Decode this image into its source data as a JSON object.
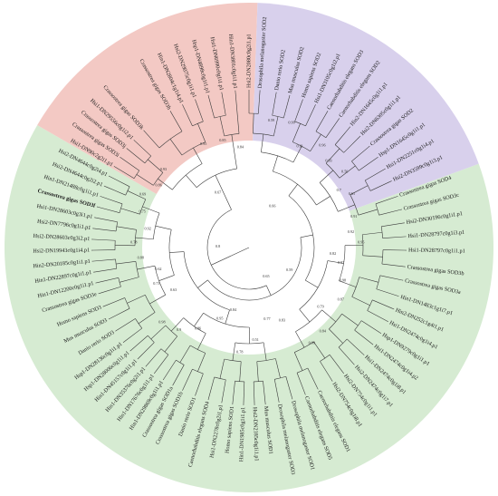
{
  "colors": {
    "green": "#d6ebd2",
    "red": "#f3c9c4",
    "purple": "#d8d0ec",
    "branch": "#3a3a3a"
  },
  "groups": [
    {
      "name": "",
      "color": "#d6ebd2",
      "start_deg": -20,
      "end_deg": 210
    },
    {
      "name": "",
      "color": "#f3c9c4",
      "start_deg": 210,
      "end_deg": 272
    },
    {
      "name": "",
      "color": "#d8d0ec",
      "start_deg": 272,
      "end_deg": 340
    }
  ],
  "leaves": [
    {
      "label": "Drosophila melanogaster SOD2",
      "deg": 274
    },
    {
      "label": "Danio rerio SOD2",
      "deg": 280
    },
    {
      "label": "Mus musculus SOD2",
      "deg": 285
    },
    {
      "label": "Homo sapiens SOD2",
      "deg": 290
    },
    {
      "label": "Hsi1-DN3105c0g1i2.p1",
      "deg": 295
    },
    {
      "label": "Caenorhabditis elegans SOD3",
      "deg": 300
    },
    {
      "label": "Caenorhabditis elegans SOD2",
      "deg": 305
    },
    {
      "label": "Hin2-DN1645c0g1i1.p1",
      "deg": 310
    },
    {
      "label": "Hsi2-DN6305c0g1i1.p1",
      "deg": 315
    },
    {
      "label": "Crassostrea gigas SOD2",
      "deg": 320
    },
    {
      "label": "Hsp1-DN1645c0g1i1.p1",
      "deg": 325
    },
    {
      "label": "Hsi1-DN2251c0g1i4.p1",
      "deg": 330
    },
    {
      "label": "Hsi2-DN3599c0g1i3.p1",
      "deg": 335
    },
    {
      "label": "Crassostrea gigas SOD4",
      "deg": 341
    },
    {
      "label": "Crassostrea gigas SOD3c",
      "deg": 346
    },
    {
      "label": "Hsi2-DN30196c0g1i1.p1",
      "deg": 351
    },
    {
      "label": "Hsi1-DN28797c0g1i3.p1",
      "deg": 356
    },
    {
      "label": "Hsi1-DN28797c0g1i1.p1",
      "deg": 1
    },
    {
      "label": "Crassostrea gigas SOD3b",
      "deg": 7
    },
    {
      "label": "Crassostrea gigas SOD3a",
      "deg": 12
    },
    {
      "label": "Hin1-DN1483c1g1i7.p1",
      "deg": 18
    },
    {
      "label": "Hin2-DN252c1g4i1.p1",
      "deg": 23
    },
    {
      "label": "Hsi1-DN2474c0g1i4.p1",
      "deg": 28
    },
    {
      "label": "Hsp1-DN9279c0g1i1.p1",
      "deg": 33
    },
    {
      "label": "Hsi1-DN2474c0g1i4.p2",
      "deg": 38
    },
    {
      "label": "Hsi1-DN2474c0g1i8.p1",
      "deg": 43
    },
    {
      "label": "Hsi2-DN2474c0g1i7.p1",
      "deg": 48
    },
    {
      "label": "Hsi2-DN754c0g1i1.p1",
      "deg": 53
    },
    {
      "label": "Hsi2-DN754c0g1i8.p1",
      "deg": 58
    },
    {
      "label": "Caenorhabditis elegans SOD1",
      "deg": 64
    },
    {
      "label": "Caenorhabditis elegans SOD5",
      "deg": 69
    },
    {
      "label": "Drosophila melanogaster SOD1",
      "deg": 74
    },
    {
      "label": "Drosophila melanogaster SOD3",
      "deg": 79
    },
    {
      "label": "Mus musculus SOD1",
      "deg": 84
    },
    {
      "label": "Hsi2-DN2185c0g1i1.p1",
      "deg": 88
    },
    {
      "label": "Hin1-DN1985c0g1i1.p1",
      "deg": 92
    },
    {
      "label": "Homo sapiens SOD1",
      "deg": 96
    },
    {
      "label": "Hsi1-DN2278c0g2i1.p1",
      "deg": 100
    },
    {
      "label": "Caenorhabditis elegans SOD4",
      "deg": 105
    },
    {
      "label": "Danio rerio SOD1",
      "deg": 110
    },
    {
      "label": "Crassostrea gigas SOD1b",
      "deg": 115
    },
    {
      "label": "Crassostrea gigas SOD1a",
      "deg": 119
    },
    {
      "label": "Hin1-DN29869c0g1i1.p1",
      "deg": 123
    },
    {
      "label": "Hin1-DN17676c0g1i1.p1",
      "deg": 127
    },
    {
      "label": "Hin1-DN35376c0g2i1.p1",
      "deg": 131
    },
    {
      "label": "Hin1-DN45157c0g1i1.p1",
      "deg": 135
    },
    {
      "label": "Hsp1-DN28006c0g1i1.p1",
      "deg": 139
    },
    {
      "label": "Hsp1-DN28136c0g1i1.p1",
      "deg": 143
    },
    {
      "label": "Danio rerio SOD3",
      "deg": 148
    },
    {
      "label": "Mus musculus SOD3",
      "deg": 153
    },
    {
      "label": "Homo sapiens SOD3",
      "deg": 158
    },
    {
      "label": "Crassostrea gigas SOD3e",
      "deg": 163
    },
    {
      "label": "Hin1-DN12200c0g1i1.p1",
      "deg": 167
    },
    {
      "label": "Hin1-DN22897c0g1i1.p1",
      "deg": 171
    },
    {
      "label": "Hin2-DN20185c0g1i1.p1",
      "deg": 175
    },
    {
      "label": "Hsi2-DN19943c0g1i4.p1",
      "deg": 179
    },
    {
      "label": "Hsi2-DN28603c0g3i2.p1",
      "deg": 183
    },
    {
      "label": "Hsi2-DN7796c0g1i1.p1",
      "deg": 187
    },
    {
      "label": "Hsi1-DN28603c0g3i1.p1",
      "deg": 191
    },
    {
      "label": "Crassostrea gigas SOD3f",
      "deg": 195,
      "bold": true
    },
    {
      "label": "Hin1-DN21488c0g1i1.p1",
      "deg": 199
    },
    {
      "label": "Hsi2-DN4644c0g2i2.p1",
      "deg": 203
    },
    {
      "label": "Hsi2-DN4644c0g2i4.p1",
      "deg": 207
    },
    {
      "label": "Hsi1-DN90c2g2i1.p1",
      "deg": 211
    },
    {
      "label": "Crassostrea gigas SOD3i",
      "deg": 215
    },
    {
      "label": "Crassostrea gigas SOD3j",
      "deg": 219
    },
    {
      "label": "Hsi1-DN29556c0g1i2.p1",
      "deg": 223
    },
    {
      "label": "Crassostrea gigas SOD3k",
      "deg": 228
    },
    {
      "label": "Crassostrea gigas SOD3h",
      "deg": 240
    },
    {
      "label": "Hin1-DN2804c1g1i4.p1",
      "deg": 245
    },
    {
      "label": "Hsi2-DN29075c0g1i1.p1",
      "deg": 250
    },
    {
      "label": "Hsp1-DN4898c0g1i1.p1",
      "deg": 255
    },
    {
      "label": "Hsi1-DN6990c0g1i1.p1",
      "deg": 260
    },
    {
      "label": "Hin1-DN3801c0g1i1.p1",
      "deg": 265
    },
    {
      "label": "Hsi2-DN2080c0g2i1.p1",
      "deg": 270
    }
  ],
  "supports": [
    {
      "text": "0.59",
      "deg": 280,
      "r": 0.82
    },
    {
      "text": "0.99",
      "deg": 289,
      "r": 0.84
    },
    {
      "text": "0.81",
      "deg": 297,
      "r": 0.72
    },
    {
      "text": "0.96",
      "deg": 306,
      "r": 0.8
    },
    {
      "text": "0.93",
      "deg": 313,
      "r": 0.75
    },
    {
      "text": "0.56",
      "deg": 322,
      "r": 0.78
    },
    {
      "text": "0.7",
      "deg": 328,
      "r": 0.68
    },
    {
      "text": "0.61",
      "deg": 333,
      "r": 0.74
    },
    {
      "text": "0.91",
      "deg": 344,
      "r": 0.7
    },
    {
      "text": "0.92",
      "deg": 352,
      "r": 0.66
    },
    {
      "text": "0.95",
      "deg": 358,
      "r": 0.72
    },
    {
      "text": "0.82",
      "deg": 5,
      "r": 0.54
    },
    {
      "text": "0.97",
      "deg": 10,
      "r": 0.6
    },
    {
      "text": "0.98",
      "deg": 20,
      "r": 0.64
    },
    {
      "text": "0.87",
      "deg": 30,
      "r": 0.68
    },
    {
      "text": "0.79",
      "deg": 40,
      "r": 0.6
    },
    {
      "text": "0.84",
      "deg": 49,
      "r": 0.72
    },
    {
      "text": "0.99",
      "deg": 57,
      "r": 0.74
    },
    {
      "text": "0.83",
      "deg": 66,
      "r": 0.52
    },
    {
      "text": "0.77",
      "deg": 76,
      "r": 0.48
    },
    {
      "text": "0.51",
      "deg": 86,
      "r": 0.6
    },
    {
      "text": "0.78",
      "deg": 95,
      "r": 0.68
    },
    {
      "text": "0.84",
      "deg": 104,
      "r": 0.42
    },
    {
      "text": "0.95",
      "deg": 112,
      "r": 0.5
    },
    {
      "text": "0.86",
      "deg": 122,
      "r": 0.62
    },
    {
      "text": "0.9",
      "deg": 130,
      "r": 0.7
    },
    {
      "text": "0.98",
      "deg": 139,
      "r": 0.74
    },
    {
      "text": "0.63",
      "deg": 150,
      "r": 0.56
    },
    {
      "text": "0.71",
      "deg": 158,
      "r": 0.64
    },
    {
      "text": "0.62",
      "deg": 166,
      "r": 0.6
    },
    {
      "text": "0.88",
      "deg": 174,
      "r": 0.7
    },
    {
      "text": "0.78",
      "deg": 182,
      "r": 0.74
    },
    {
      "text": "0.92",
      "deg": 190,
      "r": 0.66
    },
    {
      "text": "0.75",
      "deg": 198,
      "r": 0.72
    },
    {
      "text": "0.69",
      "deg": 206,
      "r": 0.76
    },
    {
      "text": "0.86",
      "deg": 214,
      "r": 0.7
    },
    {
      "text": "0.93",
      "deg": 222,
      "r": 0.74
    },
    {
      "text": "0.95",
      "deg": 246,
      "r": 0.72
    },
    {
      "text": "0.85",
      "deg": 256,
      "r": 0.7
    },
    {
      "text": "0.84",
      "deg": 265,
      "r": 0.64
    },
    {
      "text": "0.67",
      "deg": 240,
      "r": 0.4
    },
    {
      "text": "0.66",
      "deg": 300,
      "r": 0.3
    },
    {
      "text": "0.8",
      "deg": 180,
      "r": 0.2
    },
    {
      "text": "0.65",
      "deg": 60,
      "r": 0.22
    },
    {
      "text": "0.59",
      "deg": 30,
      "r": 0.3
    }
  ]
}
